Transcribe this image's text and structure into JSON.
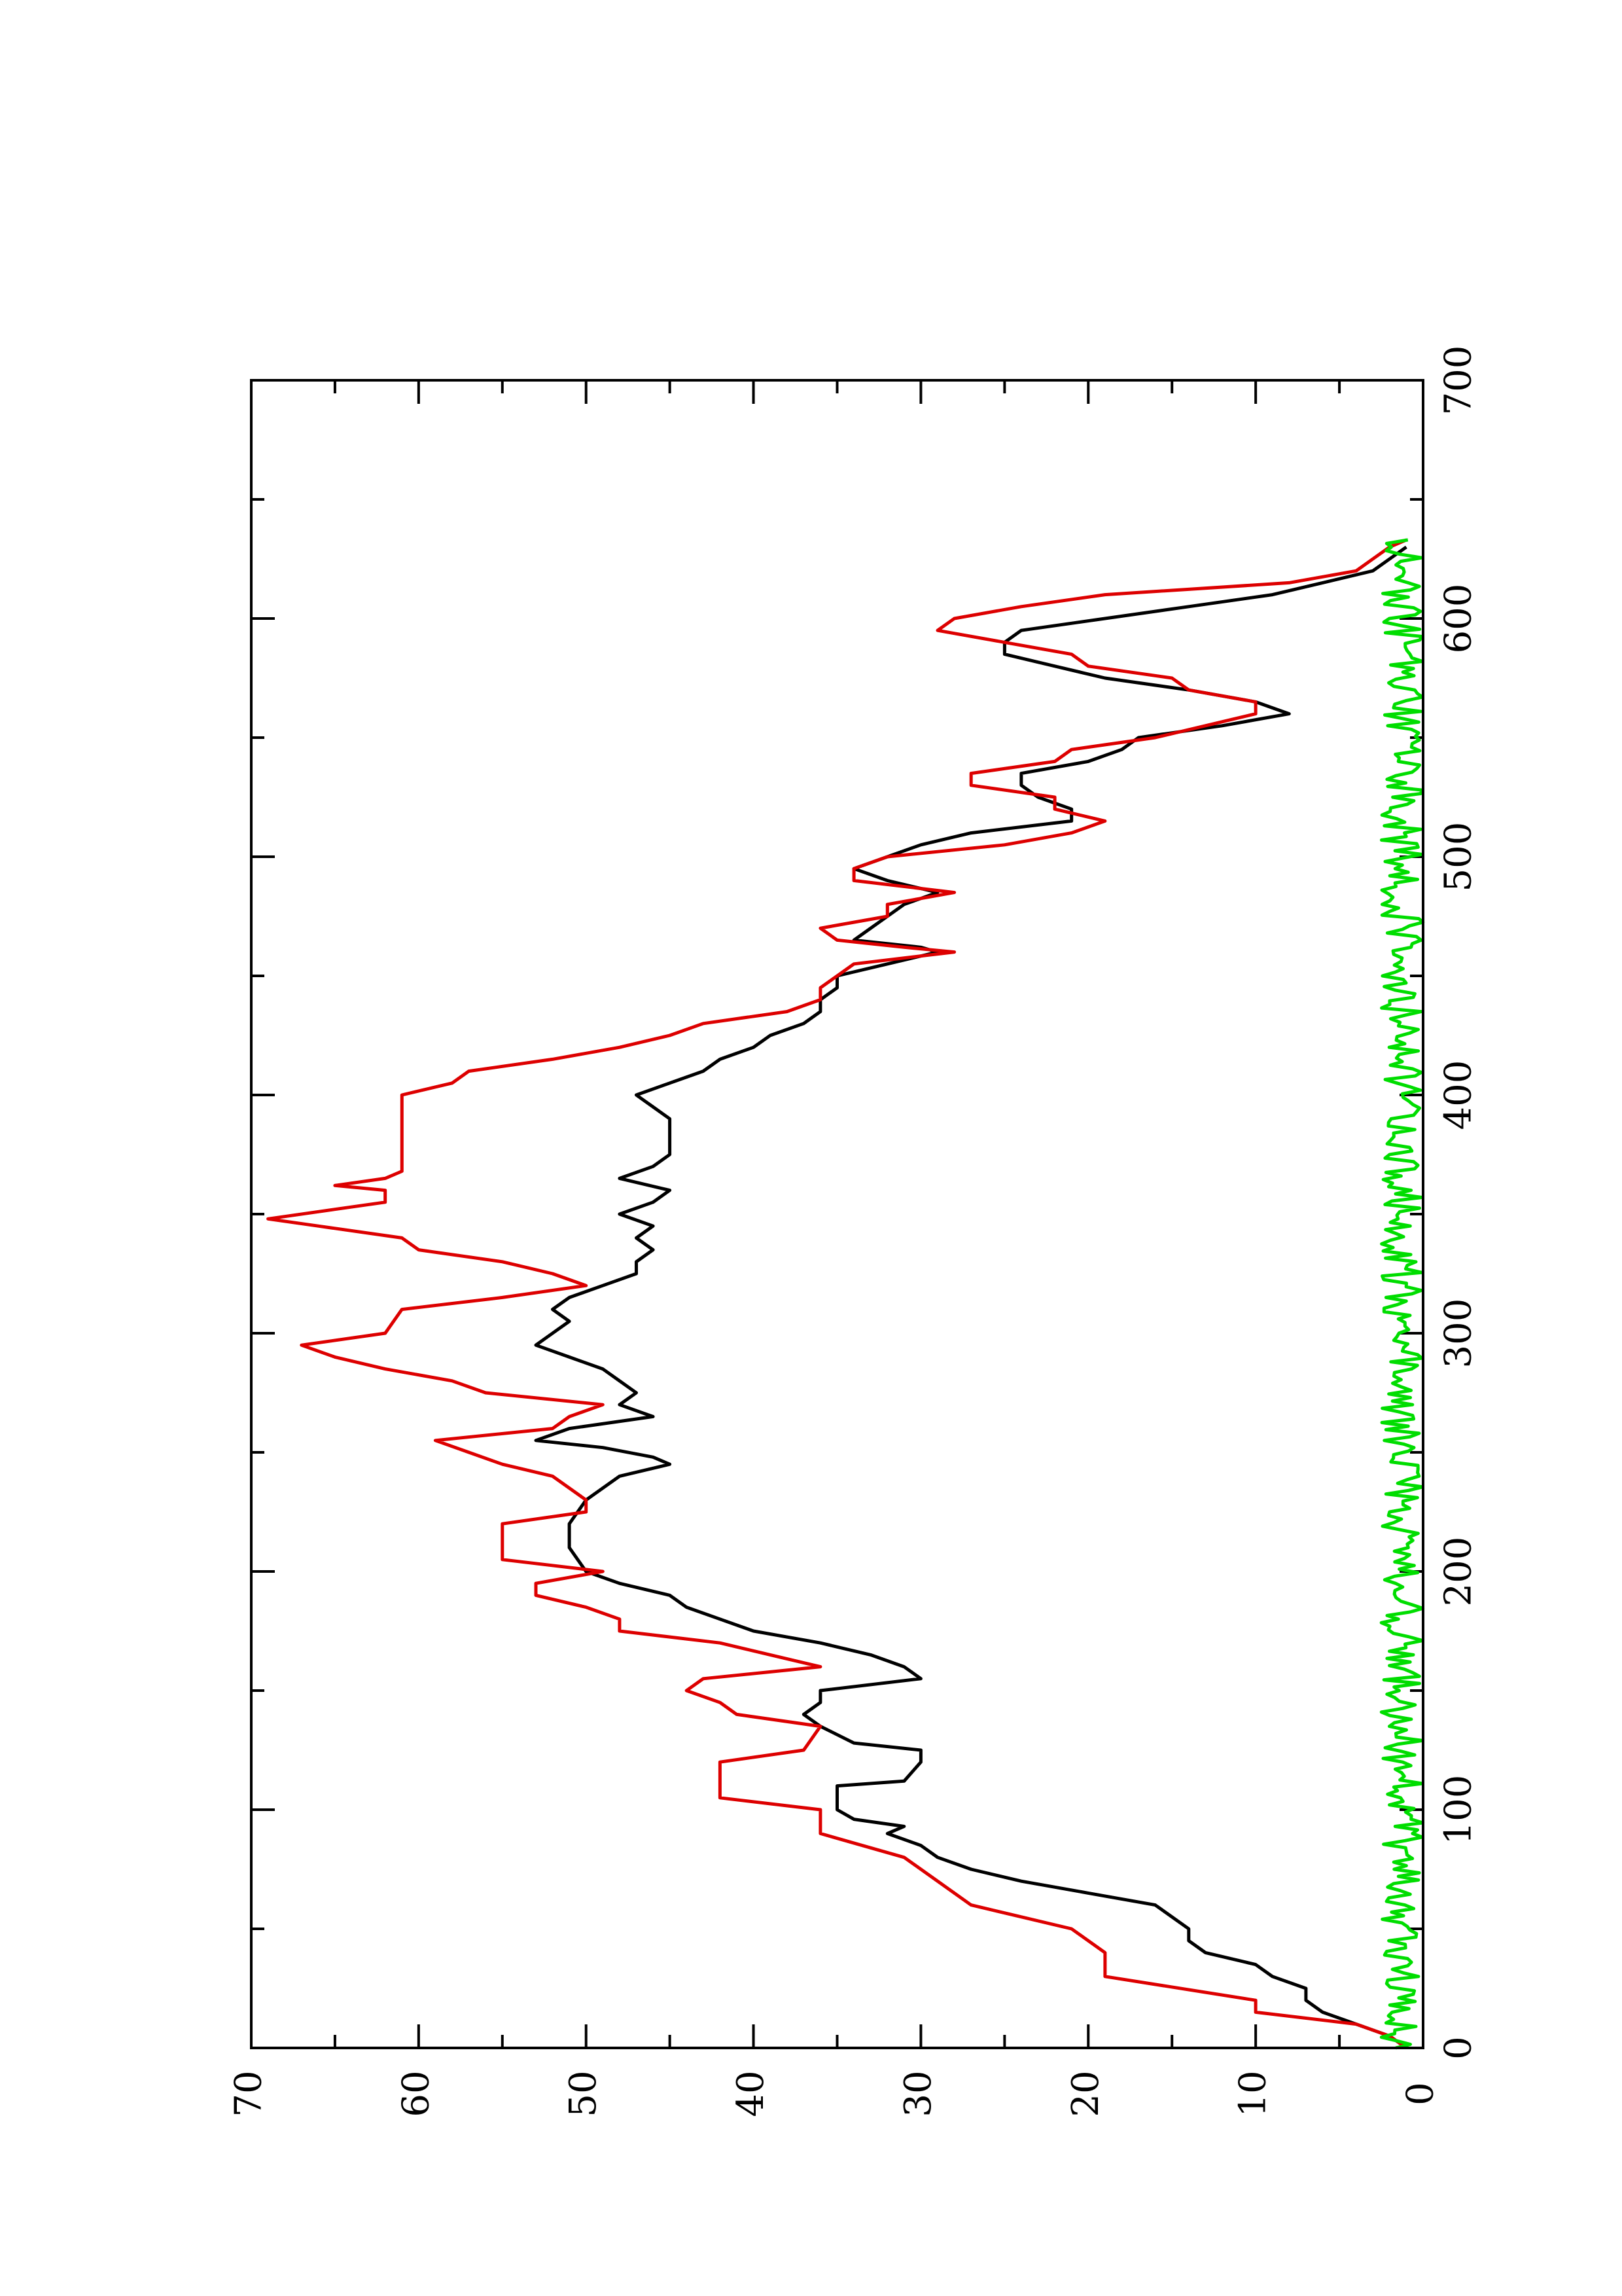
{
  "chart_data": {
    "type": "line",
    "orientation": "rotated-90",
    "title": "",
    "xlabel": "",
    "ylabel": "",
    "xlim": [
      0,
      700
    ],
    "ylim": [
      0,
      70
    ],
    "x_ticks": [
      "0",
      "100",
      "200",
      "300",
      "400",
      "500",
      "600",
      "700"
    ],
    "y_ticks": [
      "0",
      "10",
      "20",
      "30",
      "40",
      "50",
      "60",
      "70"
    ],
    "grid": false,
    "legend": "none",
    "series": [
      {
        "color": "#000000",
        "points": [
          [
            0,
            1
          ],
          [
            5,
            2
          ],
          [
            10,
            4
          ],
          [
            15,
            6
          ],
          [
            20,
            7
          ],
          [
            25,
            7
          ],
          [
            30,
            9
          ],
          [
            35,
            10
          ],
          [
            40,
            13
          ],
          [
            45,
            14
          ],
          [
            50,
            14
          ],
          [
            55,
            15
          ],
          [
            60,
            16
          ],
          [
            65,
            20
          ],
          [
            70,
            24
          ],
          [
            75,
            27
          ],
          [
            80,
            29
          ],
          [
            85,
            30
          ],
          [
            90,
            32
          ],
          [
            93,
            31
          ],
          [
            96,
            34
          ],
          [
            100,
            35
          ],
          [
            110,
            35
          ],
          [
            112,
            31
          ],
          [
            120,
            30
          ],
          [
            125,
            30
          ],
          [
            128,
            34
          ],
          [
            135,
            36
          ],
          [
            140,
            37
          ],
          [
            145,
            36
          ],
          [
            150,
            36
          ],
          [
            155,
            30
          ],
          [
            160,
            31
          ],
          [
            165,
            33
          ],
          [
            170,
            36
          ],
          [
            175,
            40
          ],
          [
            180,
            42
          ],
          [
            185,
            44
          ],
          [
            190,
            45
          ],
          [
            195,
            48
          ],
          [
            200,
            50
          ],
          [
            210,
            51
          ],
          [
            220,
            51
          ],
          [
            230,
            50
          ],
          [
            240,
            48
          ],
          [
            245,
            45
          ],
          [
            248,
            46
          ],
          [
            252,
            49
          ],
          [
            255,
            53
          ],
          [
            260,
            51
          ],
          [
            265,
            46
          ],
          [
            270,
            48
          ],
          [
            275,
            47
          ],
          [
            280,
            48
          ],
          [
            285,
            49
          ],
          [
            290,
            51
          ],
          [
            295,
            53
          ],
          [
            300,
            52
          ],
          [
            305,
            51
          ],
          [
            310,
            52
          ],
          [
            315,
            51
          ],
          [
            320,
            49
          ],
          [
            325,
            47
          ],
          [
            330,
            47
          ],
          [
            335,
            46
          ],
          [
            340,
            47
          ],
          [
            345,
            46
          ],
          [
            350,
            48
          ],
          [
            355,
            46
          ],
          [
            360,
            45
          ],
          [
            365,
            48
          ],
          [
            370,
            46
          ],
          [
            375,
            45
          ],
          [
            385,
            45
          ],
          [
            390,
            45
          ],
          [
            395,
            46
          ],
          [
            400,
            47
          ],
          [
            405,
            45
          ],
          [
            410,
            43
          ],
          [
            415,
            42
          ],
          [
            420,
            40
          ],
          [
            425,
            39
          ],
          [
            430,
            37
          ],
          [
            435,
            36
          ],
          [
            440,
            36
          ],
          [
            445,
            35
          ],
          [
            450,
            35
          ],
          [
            455,
            32
          ],
          [
            460,
            29
          ],
          [
            462,
            30
          ],
          [
            465,
            34
          ],
          [
            470,
            33
          ],
          [
            475,
            32
          ],
          [
            480,
            31
          ],
          [
            485,
            29
          ],
          [
            490,
            32
          ],
          [
            495,
            34
          ],
          [
            500,
            32
          ],
          [
            505,
            30
          ],
          [
            510,
            27
          ],
          [
            515,
            21
          ],
          [
            520,
            21
          ],
          [
            525,
            23
          ],
          [
            530,
            24
          ],
          [
            535,
            24
          ],
          [
            540,
            20
          ],
          [
            545,
            18
          ],
          [
            550,
            17
          ],
          [
            555,
            12
          ],
          [
            560,
            8
          ],
          [
            565,
            10
          ],
          [
            570,
            14
          ],
          [
            575,
            19
          ],
          [
            580,
            22
          ],
          [
            585,
            25
          ],
          [
            590,
            25
          ],
          [
            595,
            24
          ],
          [
            600,
            19
          ],
          [
            605,
            14
          ],
          [
            610,
            9
          ],
          [
            615,
            6
          ],
          [
            620,
            3
          ],
          [
            625,
            2
          ],
          [
            630,
            1
          ]
        ]
      },
      {
        "color": "#dd0000",
        "points": [
          [
            0,
            1
          ],
          [
            5,
            2
          ],
          [
            10,
            4
          ],
          [
            15,
            10
          ],
          [
            20,
            10
          ],
          [
            30,
            19
          ],
          [
            40,
            19
          ],
          [
            50,
            21
          ],
          [
            60,
            27
          ],
          [
            70,
            29
          ],
          [
            80,
            31
          ],
          [
            90,
            36
          ],
          [
            100,
            36
          ],
          [
            105,
            42
          ],
          [
            120,
            42
          ],
          [
            125,
            37
          ],
          [
            135,
            36
          ],
          [
            140,
            41
          ],
          [
            145,
            42
          ],
          [
            150,
            44
          ],
          [
            155,
            43
          ],
          [
            160,
            36
          ],
          [
            165,
            39
          ],
          [
            170,
            42
          ],
          [
            175,
            48
          ],
          [
            180,
            48
          ],
          [
            185,
            50
          ],
          [
            190,
            53
          ],
          [
            195,
            53
          ],
          [
            200,
            49
          ],
          [
            205,
            55
          ],
          [
            220,
            55
          ],
          [
            225,
            50
          ],
          [
            230,
            50
          ],
          [
            240,
            52
          ],
          [
            245,
            55
          ],
          [
            250,
            57
          ],
          [
            255,
            59
          ],
          [
            260,
            52
          ],
          [
            265,
            51
          ],
          [
            270,
            49
          ],
          [
            275,
            56
          ],
          [
            280,
            58
          ],
          [
            285,
            62
          ],
          [
            290,
            65
          ],
          [
            295,
            67
          ],
          [
            300,
            62
          ],
          [
            310,
            61
          ],
          [
            315,
            55
          ],
          [
            320,
            50
          ],
          [
            325,
            52
          ],
          [
            330,
            55
          ],
          [
            335,
            60
          ],
          [
            340,
            61
          ],
          [
            345,
            66
          ],
          [
            348,
            69
          ],
          [
            352,
            65
          ],
          [
            355,
            62
          ],
          [
            360,
            62
          ],
          [
            362,
            65
          ],
          [
            365,
            62
          ],
          [
            368,
            61
          ],
          [
            400,
            61
          ],
          [
            405,
            58
          ],
          [
            410,
            57
          ],
          [
            415,
            52
          ],
          [
            420,
            48
          ],
          [
            425,
            45
          ],
          [
            430,
            43
          ],
          [
            435,
            38
          ],
          [
            440,
            36
          ],
          [
            445,
            36
          ],
          [
            450,
            35
          ],
          [
            455,
            34
          ],
          [
            460,
            28
          ],
          [
            462,
            31
          ],
          [
            465,
            35
          ],
          [
            470,
            36
          ],
          [
            475,
            32
          ],
          [
            480,
            32
          ],
          [
            485,
            28
          ],
          [
            490,
            34
          ],
          [
            495,
            34
          ],
          [
            500,
            32
          ],
          [
            505,
            25
          ],
          [
            510,
            21
          ],
          [
            515,
            19
          ],
          [
            520,
            22
          ],
          [
            525,
            22
          ],
          [
            530,
            27
          ],
          [
            535,
            27
          ],
          [
            540,
            22
          ],
          [
            545,
            21
          ],
          [
            550,
            16
          ],
          [
            555,
            13
          ],
          [
            560,
            10
          ],
          [
            565,
            10
          ],
          [
            570,
            14
          ],
          [
            575,
            15
          ],
          [
            580,
            20
          ],
          [
            585,
            21
          ],
          [
            590,
            25
          ],
          [
            595,
            29
          ],
          [
            600,
            28
          ],
          [
            605,
            24
          ],
          [
            610,
            19
          ],
          [
            615,
            8
          ],
          [
            620,
            4
          ],
          [
            625,
            3
          ],
          [
            630,
            2
          ],
          [
            633,
            1
          ]
        ]
      },
      {
        "color": "#00dd00",
        "noise_amplitude": 2.5
      }
    ]
  }
}
